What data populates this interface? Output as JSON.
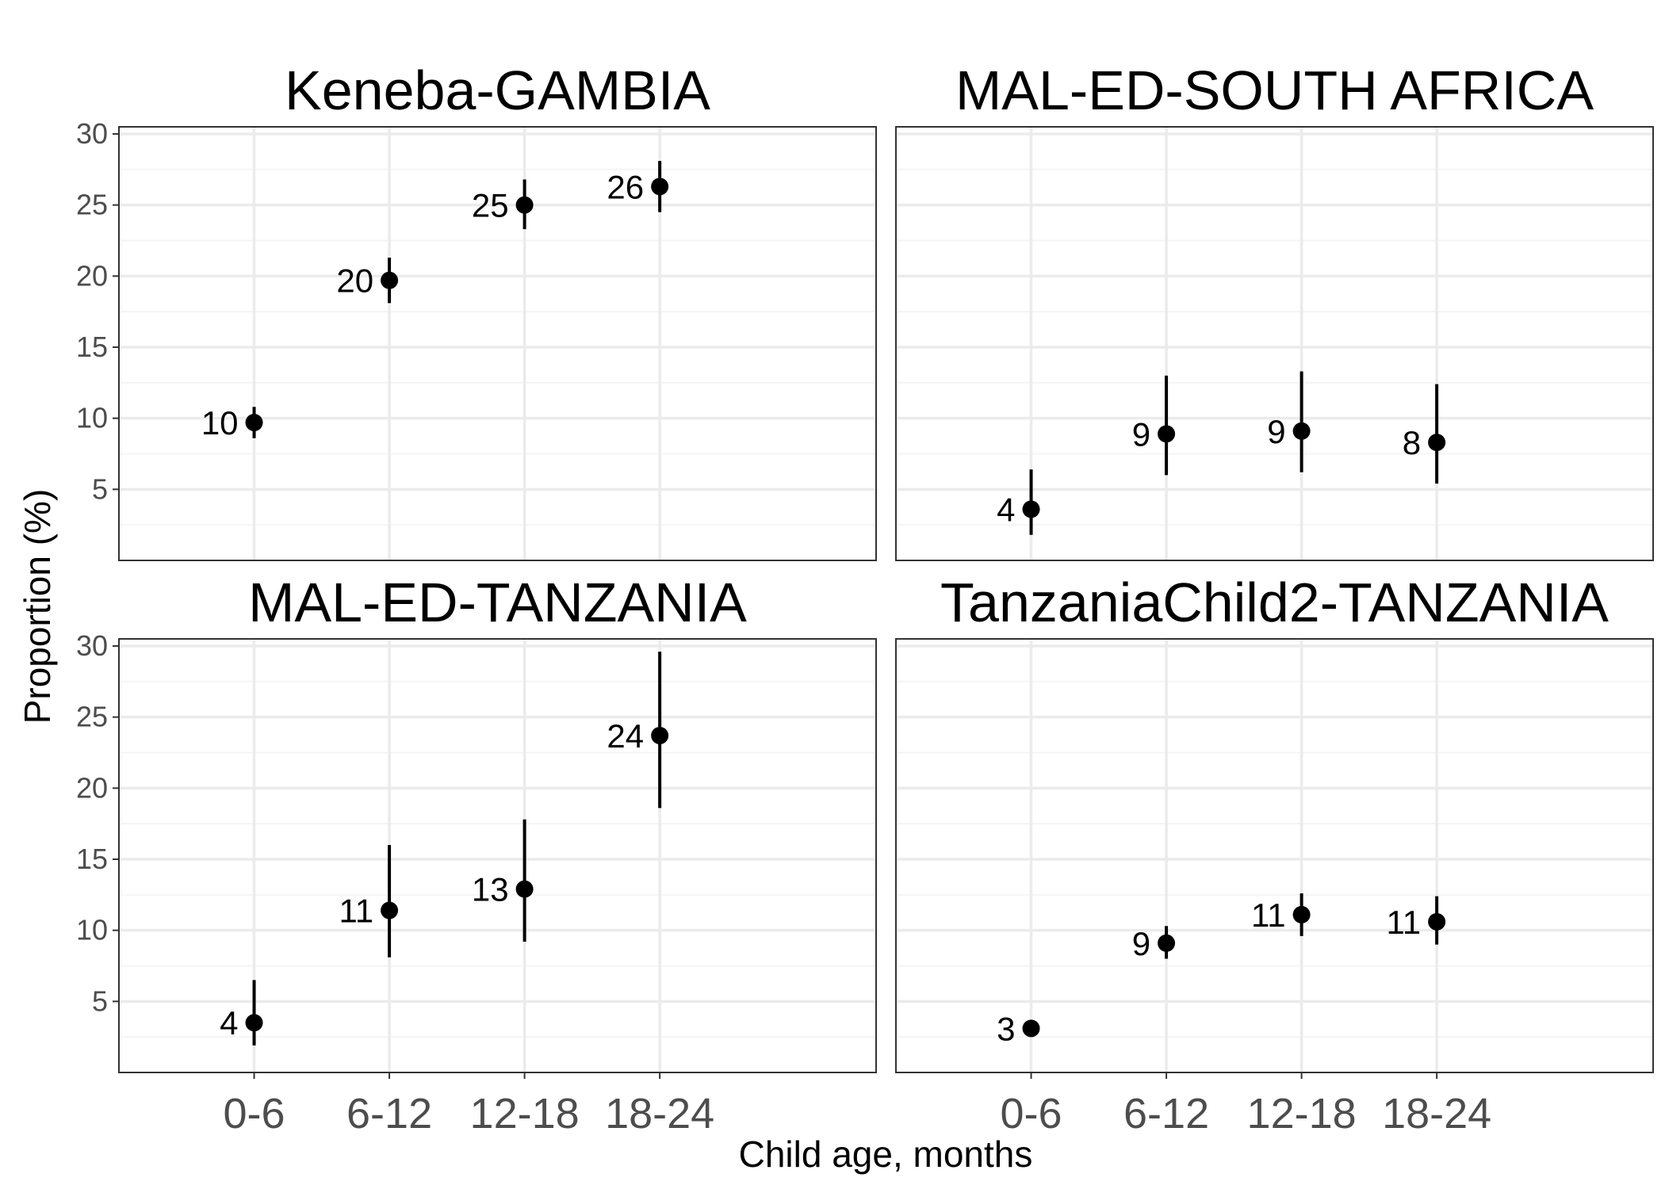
{
  "chart_data": {
    "type": "scatter",
    "xlabel": "Child age, months",
    "ylabel": "Proportion (%)",
    "categories": [
      "0-6",
      "6-12",
      "12-18",
      "18-24"
    ],
    "y_ticks": [
      5,
      10,
      15,
      20,
      25,
      30
    ],
    "ylim": [
      0,
      30.5
    ],
    "grid": true,
    "colors": {
      "point": "#000000",
      "grid_major": "#ebebeb",
      "grid_minor": "#f5f5f5",
      "panel_border": "#333333",
      "tick_text": "#4d4d4d"
    },
    "panels": [
      {
        "title": "Keneba-GAMBIA",
        "points": [
          {
            "x": "0-6",
            "y": 9.7,
            "lower": 8.6,
            "upper": 10.8,
            "label": "10"
          },
          {
            "x": "6-12",
            "y": 19.7,
            "lower": 18.1,
            "upper": 21.3,
            "label": "20"
          },
          {
            "x": "12-18",
            "y": 25.0,
            "lower": 23.3,
            "upper": 26.8,
            "label": "25"
          },
          {
            "x": "18-24",
            "y": 26.3,
            "lower": 24.5,
            "upper": 28.1,
            "label": "26"
          }
        ]
      },
      {
        "title": "MAL-ED-SOUTH AFRICA",
        "points": [
          {
            "x": "0-6",
            "y": 3.6,
            "lower": 1.8,
            "upper": 6.4,
            "label": "4"
          },
          {
            "x": "6-12",
            "y": 8.9,
            "lower": 6.0,
            "upper": 13.0,
            "label": "9"
          },
          {
            "x": "12-18",
            "y": 9.1,
            "lower": 6.2,
            "upper": 13.3,
            "label": "9"
          },
          {
            "x": "18-24",
            "y": 8.3,
            "lower": 5.4,
            "upper": 12.4,
            "label": "8"
          }
        ]
      },
      {
        "title": "MAL-ED-TANZANIA",
        "points": [
          {
            "x": "0-6",
            "y": 3.5,
            "lower": 1.9,
            "upper": 6.5,
            "label": "4"
          },
          {
            "x": "6-12",
            "y": 11.4,
            "lower": 8.1,
            "upper": 16.0,
            "label": "11"
          },
          {
            "x": "12-18",
            "y": 12.9,
            "lower": 9.2,
            "upper": 17.8,
            "label": "13"
          },
          {
            "x": "18-24",
            "y": 23.7,
            "lower": 18.6,
            "upper": 29.6,
            "label": "24"
          }
        ]
      },
      {
        "title": "TanzaniaChild2-TANZANIA",
        "points": [
          {
            "x": "0-6",
            "y": 3.1,
            "lower": 2.7,
            "upper": 3.6,
            "label": "3"
          },
          {
            "x": "6-12",
            "y": 9.1,
            "lower": 8.0,
            "upper": 10.3,
            "label": "9"
          },
          {
            "x": "12-18",
            "y": 11.1,
            "lower": 9.6,
            "upper": 12.6,
            "label": "11"
          },
          {
            "x": "18-24",
            "y": 10.6,
            "lower": 9.0,
            "upper": 12.4,
            "label": "11"
          }
        ]
      }
    ]
  }
}
